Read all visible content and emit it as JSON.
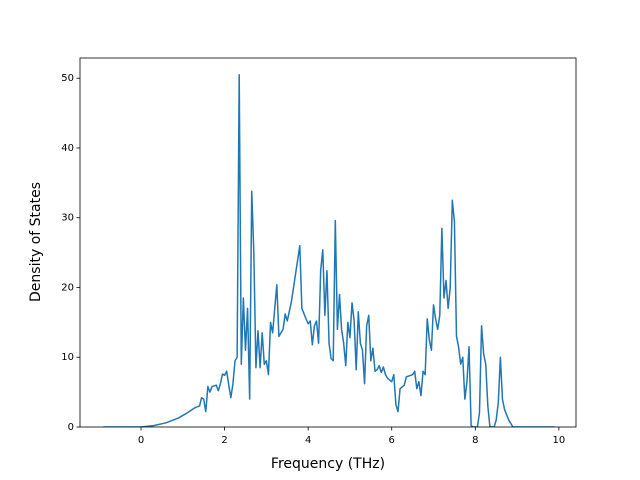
{
  "chart_data": {
    "type": "line",
    "xlabel": "Frequency (THz)",
    "ylabel": "Density of States",
    "color": "#1f77b4",
    "x": [
      -0.9,
      0,
      0.3,
      0.6,
      0.9,
      1.1,
      1.3,
      1.4,
      1.45,
      1.5,
      1.55,
      1.6,
      1.65,
      1.7,
      1.8,
      1.85,
      1.9,
      1.95,
      2.0,
      2.05,
      2.1,
      2.15,
      2.2,
      2.25,
      2.3,
      2.35,
      2.4,
      2.45,
      2.5,
      2.55,
      2.6,
      2.65,
      2.7,
      2.75,
      2.8,
      2.85,
      2.9,
      2.95,
      3.0,
      3.05,
      3.1,
      3.15,
      3.25,
      3.3,
      3.4,
      3.45,
      3.5,
      3.6,
      3.7,
      3.8,
      3.85,
      3.95,
      4.0,
      4.05,
      4.1,
      4.15,
      4.2,
      4.25,
      4.3,
      4.35,
      4.4,
      4.45,
      4.5,
      4.55,
      4.6,
      4.65,
      4.7,
      4.75,
      4.8,
      4.85,
      4.9,
      4.95,
      5.0,
      5.05,
      5.1,
      5.15,
      5.2,
      5.25,
      5.3,
      5.35,
      5.4,
      5.45,
      5.5,
      5.55,
      5.6,
      5.65,
      5.7,
      5.75,
      5.8,
      5.85,
      5.9,
      6.0,
      6.05,
      6.1,
      6.15,
      6.2,
      6.3,
      6.35,
      6.5,
      6.55,
      6.6,
      6.65,
      6.7,
      6.75,
      6.8,
      6.85,
      6.9,
      6.95,
      7.0,
      7.05,
      7.1,
      7.15,
      7.2,
      7.25,
      7.3,
      7.35,
      7.4,
      7.45,
      7.5,
      7.55,
      7.6,
      7.65,
      7.7,
      7.75,
      7.8,
      7.85,
      7.9,
      7.95,
      8.05,
      8.1,
      8.15,
      8.2,
      8.25,
      8.3,
      8.35,
      8.45,
      8.5,
      8.55,
      8.6,
      8.65,
      8.7,
      8.8,
      8.9,
      9.9
    ],
    "values": [
      0,
      0,
      0.2,
      0.6,
      1.3,
      2.0,
      2.8,
      3.0,
      4.2,
      4.0,
      2.2,
      5.8,
      5.0,
      5.8,
      6.0,
      5.2,
      6.2,
      7.6,
      7.4,
      8.0,
      6.0,
      4.2,
      6.2,
      9.5,
      10.0,
      50.5,
      9.0,
      18.5,
      11.0,
      17.0,
      4.0,
      33.8,
      25.0,
      8.5,
      13.8,
      8.5,
      13.5,
      9.0,
      9.5,
      7.5,
      15.0,
      13.5,
      20.4,
      13.0,
      14.0,
      16.2,
      15.2,
      18.0,
      22.0,
      26.0,
      17.0,
      15.5,
      14.8,
      15.2,
      11.8,
      14.5,
      15.2,
      12.0,
      22.5,
      25.4,
      16.0,
      22.4,
      12.0,
      9.8,
      9.5,
      29.6,
      14.0,
      19.0,
      14.0,
      12.0,
      8.8,
      15.0,
      12.8,
      17.8,
      15.2,
      8.2,
      16.5,
      12.0,
      11.0,
      6.2,
      14.5,
      16.0,
      9.5,
      11.3,
      8.0,
      8.2,
      8.8,
      7.8,
      8.6,
      7.5,
      7.0,
      6.5,
      7.5,
      3.2,
      2.2,
      5.5,
      6.0,
      7.2,
      7.5,
      8.0,
      5.5,
      6.5,
      4.5,
      8.0,
      7.5,
      15.5,
      12.5,
      11.0,
      17.5,
      15.5,
      14.0,
      16.0,
      28.5,
      18.5,
      21.0,
      17.0,
      20.0,
      32.5,
      29.5,
      13.0,
      11.5,
      9.0,
      10.0,
      4.0,
      6.5,
      11.5,
      0.2,
      0,
      0,
      2.0,
      14.5,
      10.5,
      9.0,
      3.0,
      0,
      0,
      1.0,
      3.5,
      10.0,
      4.0,
      2.5,
      1.0,
      0,
      0
    ],
    "xlim": [
      -1.46,
      10.41
    ],
    "xticks": [
      0,
      2,
      4,
      6,
      8,
      10
    ],
    "ylim": [
      0,
      52.9
    ],
    "yticks": [
      0,
      10,
      20,
      30,
      40,
      50
    ]
  }
}
